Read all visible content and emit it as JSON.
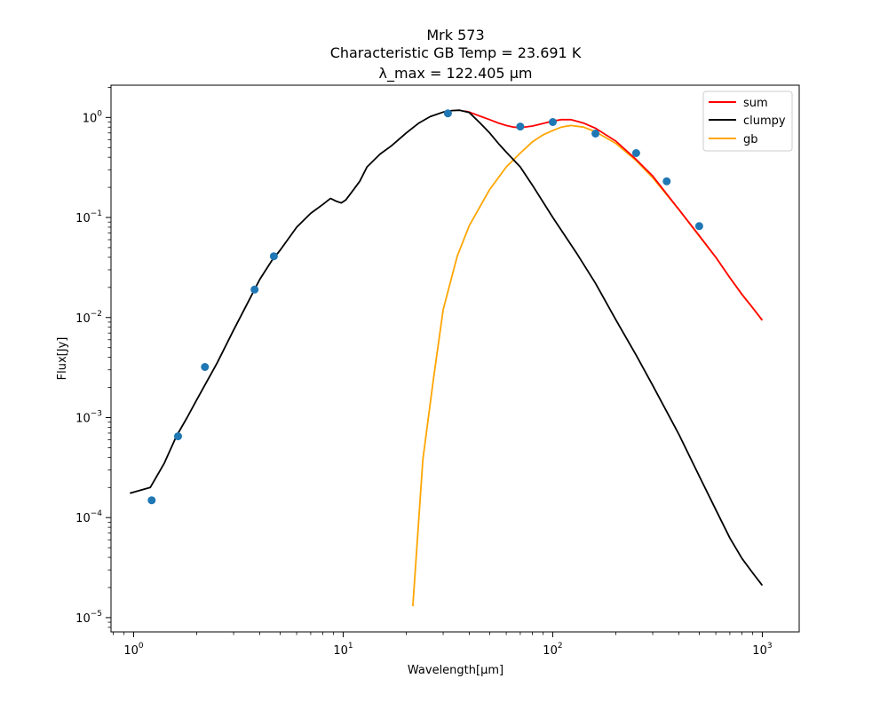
{
  "chart_data": {
    "type": "line",
    "title_lines": [
      "Mrk 573",
      "Characteristic GB Temp = 23.691 K",
      "λ_max = 122.405 μm"
    ],
    "xlabel": "Wavelength[μm]",
    "ylabel": "Flux[Jy]",
    "xscale": "log",
    "yscale": "log",
    "xlim": [
      0.78,
      1500
    ],
    "ylim": [
      7.2e-06,
      2.1
    ],
    "x_ticks": [
      {
        "value": 1,
        "base": "10",
        "exp": "0"
      },
      {
        "value": 10,
        "base": "10",
        "exp": "1"
      },
      {
        "value": 100,
        "base": "10",
        "exp": "2"
      },
      {
        "value": 1000,
        "base": "10",
        "exp": "3"
      }
    ],
    "y_ticks": [
      {
        "value": 1e-05,
        "base": "10",
        "exp": "−5"
      },
      {
        "value": 0.0001,
        "base": "10",
        "exp": "−4"
      },
      {
        "value": 0.001,
        "base": "10",
        "exp": "−3"
      },
      {
        "value": 0.01,
        "base": "10",
        "exp": "−2"
      },
      {
        "value": 0.1,
        "base": "10",
        "exp": "−1"
      },
      {
        "value": 1,
        "base": "10",
        "exp": "0"
      }
    ],
    "legend": {
      "position": "top-right",
      "entries": [
        {
          "label": "sum",
          "color": "#ff0000"
        },
        {
          "label": "clumpy",
          "color": "#000000"
        },
        {
          "label": "gb",
          "color": "#ffa500"
        }
      ]
    },
    "grid": false,
    "series": [
      {
        "name": "gb",
        "color": "#ffa500",
        "points": [
          [
            21.5,
            1.3e-05
          ],
          [
            24,
            0.00038
          ],
          [
            27,
            0.0025
          ],
          [
            30,
            0.012
          ],
          [
            35,
            0.041
          ],
          [
            40,
            0.083
          ],
          [
            50,
            0.19
          ],
          [
            60,
            0.32
          ],
          [
            70,
            0.44
          ],
          [
            80,
            0.57
          ],
          [
            90,
            0.67
          ],
          [
            100,
            0.74
          ],
          [
            110,
            0.8
          ],
          [
            122,
            0.83
          ],
          [
            140,
            0.8
          ],
          [
            160,
            0.72
          ],
          [
            200,
            0.55
          ],
          [
            250,
            0.37
          ],
          [
            300,
            0.25
          ],
          [
            400,
            0.12
          ],
          [
            500,
            0.065
          ],
          [
            600,
            0.04
          ],
          [
            700,
            0.025
          ],
          [
            800,
            0.017
          ],
          [
            900,
            0.0125
          ],
          [
            1000,
            0.0094
          ]
        ]
      },
      {
        "name": "sum",
        "color": "#ff0000",
        "points": [
          [
            38,
            1.16
          ],
          [
            40,
            1.13
          ],
          [
            45,
            1.03
          ],
          [
            50,
            0.95
          ],
          [
            55,
            0.88
          ],
          [
            60,
            0.83
          ],
          [
            65,
            0.8
          ],
          [
            70,
            0.79
          ],
          [
            80,
            0.82
          ],
          [
            90,
            0.87
          ],
          [
            100,
            0.92
          ],
          [
            110,
            0.95
          ],
          [
            122,
            0.95
          ],
          [
            140,
            0.88
          ],
          [
            160,
            0.78
          ],
          [
            200,
            0.58
          ],
          [
            250,
            0.38
          ],
          [
            300,
            0.26
          ],
          [
            400,
            0.12
          ],
          [
            500,
            0.066
          ],
          [
            600,
            0.04
          ],
          [
            700,
            0.025
          ],
          [
            800,
            0.017
          ],
          [
            900,
            0.0125
          ],
          [
            1000,
            0.0094
          ]
        ]
      },
      {
        "name": "clumpy",
        "color": "#000000",
        "points": [
          [
            0.96,
            0.000175
          ],
          [
            1.2,
            0.0002
          ],
          [
            1.4,
            0.00035
          ],
          [
            1.6,
            0.00065
          ],
          [
            1.8,
            0.001
          ],
          [
            2.0,
            0.0015
          ],
          [
            2.5,
            0.0035
          ],
          [
            3.0,
            0.0075
          ],
          [
            3.5,
            0.014
          ],
          [
            4.0,
            0.024
          ],
          [
            4.6,
            0.038
          ],
          [
            5.0,
            0.047
          ],
          [
            6.0,
            0.08
          ],
          [
            7.0,
            0.11
          ],
          [
            8.0,
            0.135
          ],
          [
            8.7,
            0.155
          ],
          [
            9.3,
            0.145
          ],
          [
            9.8,
            0.14
          ],
          [
            10.3,
            0.15
          ],
          [
            11.0,
            0.18
          ],
          [
            12.0,
            0.23
          ],
          [
            13.0,
            0.32
          ],
          [
            15.0,
            0.43
          ],
          [
            17.0,
            0.52
          ],
          [
            20.0,
            0.7
          ],
          [
            23.0,
            0.88
          ],
          [
            26.0,
            1.02
          ],
          [
            30.0,
            1.13
          ],
          [
            33.0,
            1.17
          ],
          [
            36.0,
            1.18
          ],
          [
            40.0,
            1.12
          ],
          [
            45.0,
            0.88
          ],
          [
            50.0,
            0.7
          ],
          [
            55.0,
            0.55
          ],
          [
            60.0,
            0.45
          ],
          [
            70.0,
            0.32
          ],
          [
            80.0,
            0.21
          ],
          [
            100.0,
            0.1
          ],
          [
            130.0,
            0.044
          ],
          [
            160.0,
            0.022
          ],
          [
            200.0,
            0.0095
          ],
          [
            250.0,
            0.0042
          ],
          [
            300.0,
            0.0021
          ],
          [
            400.0,
            0.00068
          ],
          [
            500.0,
            0.00026
          ],
          [
            600.0,
            0.00012
          ],
          [
            700.0,
            6.25e-05
          ],
          [
            800.0,
            3.9e-05
          ],
          [
            900.0,
            2.8e-05
          ],
          [
            1000.0,
            2.1e-05
          ]
        ]
      }
    ],
    "scatter": {
      "color": "#1f77b4",
      "points": [
        [
          1.22,
          0.000149
        ],
        [
          1.63,
          0.00065
        ],
        [
          2.19,
          0.0032
        ],
        [
          3.78,
          0.019
        ],
        [
          4.67,
          0.041
        ],
        [
          31.6,
          1.1
        ],
        [
          70,
          0.81
        ],
        [
          100,
          0.9
        ],
        [
          160,
          0.69
        ],
        [
          250,
          0.44
        ],
        [
          350,
          0.23
        ],
        [
          500,
          0.082
        ]
      ]
    }
  }
}
